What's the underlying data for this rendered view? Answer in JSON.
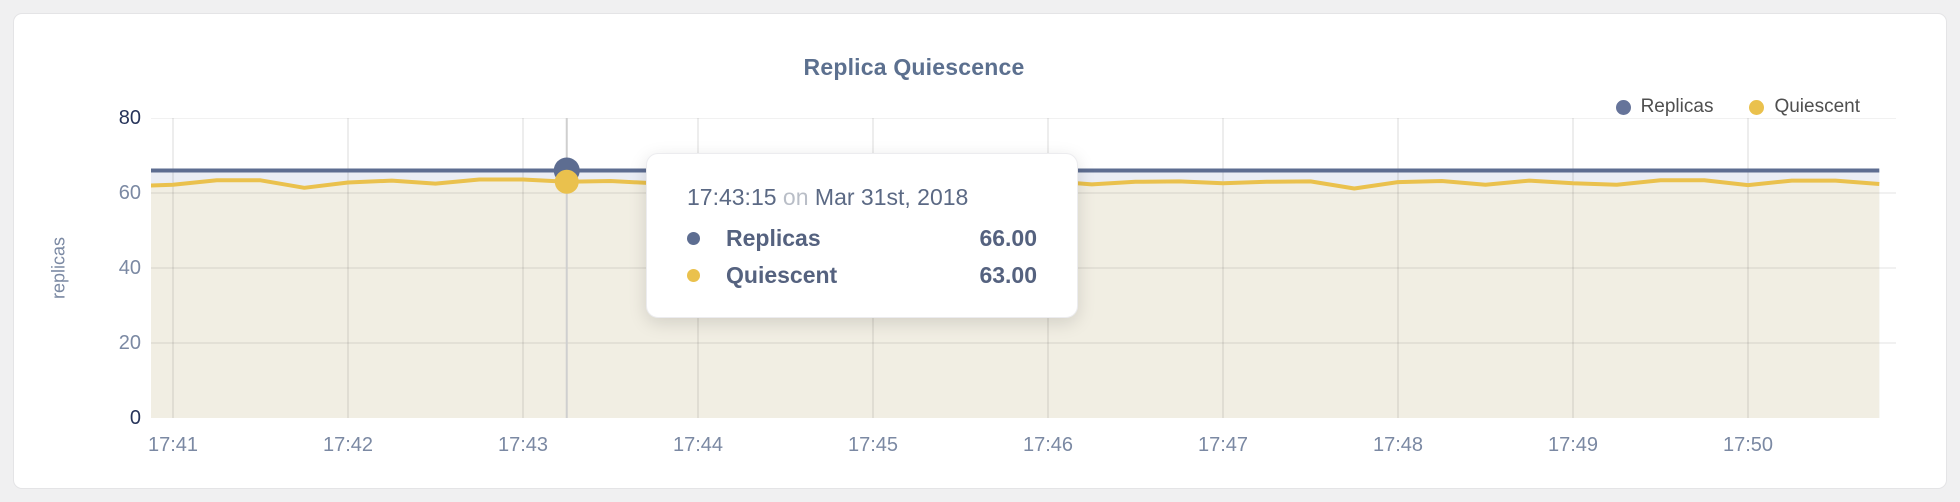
{
  "chart": {
    "title": "Replica Quiescence",
    "legend": [
      {
        "label": "Replicas",
        "color": "#66749a"
      },
      {
        "label": "Quiescent",
        "color": "#eac14d"
      }
    ],
    "y_axis": {
      "title": "replicas",
      "ticks": [
        80,
        60,
        40,
        20,
        0
      ]
    },
    "x_axis": {
      "ticks": [
        "17:41",
        "17:42",
        "17:43",
        "17:44",
        "17:45",
        "17:46",
        "17:47",
        "17:48",
        "17:49",
        "17:50"
      ]
    }
  },
  "tooltip": {
    "time": "17:43:15",
    "joiner": "on",
    "date": "Mar 31st, 2018",
    "rows": [
      {
        "label": "Replicas",
        "value": "66.00",
        "color": "#5d6d91"
      },
      {
        "label": "Quiescent",
        "value": "63.00",
        "color": "#eac14d"
      }
    ]
  },
  "chart_data": {
    "type": "line",
    "title": "Replica Quiescence",
    "ylabel": "replicas",
    "ylim": [
      0,
      80
    ],
    "y_ticks": [
      80,
      60,
      40,
      20,
      0
    ],
    "x_tick_labels": [
      "17:41",
      "17:42",
      "17:43",
      "17:44",
      "17:45",
      "17:46",
      "17:47",
      "17:48",
      "17:49",
      "17:50"
    ],
    "grid": true,
    "legend_position": "top-right",
    "times": [
      "17:40:45",
      "17:41:00",
      "17:41:15",
      "17:41:30",
      "17:41:45",
      "17:42:00",
      "17:42:15",
      "17:42:30",
      "17:42:45",
      "17:43:00",
      "17:43:15",
      "17:43:30",
      "17:43:45",
      "17:44:00",
      "17:44:15",
      "17:44:30",
      "17:44:45",
      "17:45:00",
      "17:45:15",
      "17:45:30",
      "17:45:45",
      "17:46:00",
      "17:46:15",
      "17:46:30",
      "17:46:45",
      "17:47:00",
      "17:47:15",
      "17:47:30",
      "17:47:45",
      "17:48:00",
      "17:48:15",
      "17:48:30",
      "17:48:45",
      "17:49:00",
      "17:49:15",
      "17:49:30",
      "17:49:45",
      "17:50:00",
      "17:50:15",
      "17:50:30",
      "17:50:45"
    ],
    "series": [
      {
        "name": "Replicas",
        "color": "#5d6d91",
        "area_fill": "#eaedf4",
        "values": [
          66,
          66,
          66,
          66,
          66,
          66,
          66,
          66,
          66,
          66,
          66,
          66,
          66,
          66,
          66,
          66,
          66,
          66,
          66,
          66,
          66,
          66,
          66,
          66,
          66,
          66,
          66,
          66,
          66,
          66,
          66,
          66,
          66,
          66,
          66,
          66,
          66,
          66,
          66,
          66,
          66
        ]
      },
      {
        "name": "Quiescent",
        "color": "#eac14d",
        "area_fill": "#f1eee3",
        "values": [
          61.8,
          62.2,
          63.4,
          63.4,
          61.4,
          62.8,
          63.3,
          62.5,
          63.6,
          63.6,
          63.0,
          63.2,
          62.6,
          63.2,
          63.4,
          62.8,
          63.3,
          62.7,
          63.1,
          63.4,
          62.9,
          63.2,
          62.3,
          63.0,
          63.1,
          62.6,
          63.0,
          63.1,
          61.2,
          62.9,
          63.2,
          62.2,
          63.3,
          62.6,
          62.2,
          63.4,
          63.4,
          62.1,
          63.3,
          63.3,
          62.4
        ]
      }
    ],
    "hover": {
      "t": "17:43:15",
      "values": {
        "Replicas": 66.0,
        "Quiescent": 63.0
      },
      "crosshair_color": "#cfcfcf"
    }
  }
}
